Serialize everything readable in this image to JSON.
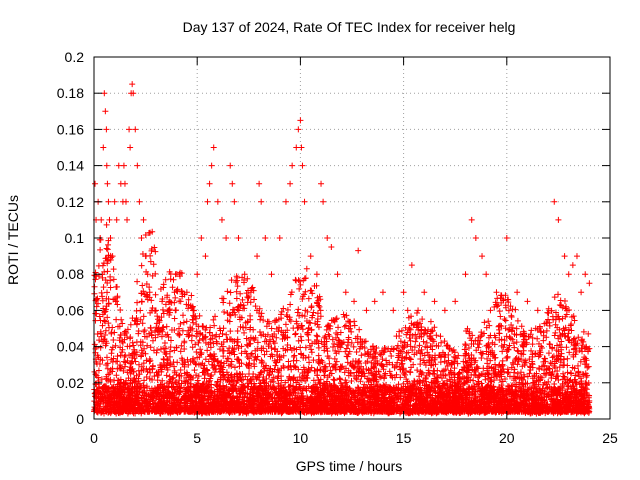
{
  "chart_data": {
    "type": "scatter",
    "title": "Day 137 of 2024, Rate Of TEC Index for receiver helg",
    "xlabel": "GPS time / hours",
    "ylabel": "ROTI / TECUs",
    "xlim": [
      0,
      25
    ],
    "ylim": [
      0,
      0.2
    ],
    "x_ticks": [
      0,
      5,
      10,
      15,
      20,
      25
    ],
    "x_tick_labels": [
      "0",
      "5",
      "10",
      "15",
      "20",
      "25"
    ],
    "y_ticks": [
      0,
      0.02,
      0.04,
      0.06,
      0.08,
      0.1,
      0.12,
      0.14,
      0.16,
      0.18,
      0.2
    ],
    "y_tick_labels": [
      "0",
      "0.02",
      "0.04",
      "0.06",
      "0.08",
      "0.1",
      "0.12",
      "0.14",
      "0.16",
      "0.18",
      "0.2"
    ],
    "grid": true,
    "marker": "+",
    "marker_color": "#ff0000",
    "series": [
      {
        "name": "ROTI",
        "x": [
          0.05,
          0.1,
          0.2,
          0.3,
          0.35,
          0.45,
          0.5,
          0.55,
          0.6,
          0.62,
          0.65,
          0.7,
          0.75,
          0.8,
          0.9,
          1.0,
          1.1,
          1.2,
          1.3,
          1.4,
          1.45,
          1.5,
          1.55,
          1.6,
          1.7,
          1.75,
          1.8,
          1.85,
          1.9,
          2.0,
          2.1,
          2.2,
          2.3,
          2.4,
          2.5,
          2.6,
          2.7,
          2.8,
          3.0,
          3.3,
          3.6,
          3.9,
          4.2,
          4.5,
          4.8,
          5.0,
          5.2,
          5.4,
          5.5,
          5.6,
          5.7,
          5.8,
          6.0,
          6.2,
          6.4,
          6.6,
          6.7,
          6.8,
          7.0,
          7.3,
          7.6,
          7.9,
          8.0,
          8.1,
          8.3,
          8.6,
          9.0,
          9.3,
          9.5,
          9.6,
          9.8,
          9.9,
          10.0,
          10.05,
          10.1,
          10.2,
          10.5,
          10.8,
          11.0,
          11.1,
          11.3,
          11.5,
          11.8,
          12.2,
          12.6,
          12.8,
          13.2,
          13.6,
          14.0,
          14.5,
          15.0,
          15.2,
          15.4,
          15.7,
          16.0,
          16.5,
          17.0,
          17.5,
          18.0,
          18.3,
          18.5,
          18.8,
          19.0,
          19.5,
          20.0,
          20.5,
          21.0,
          21.5,
          22.0,
          22.3,
          22.5,
          22.8,
          23.0,
          23.2,
          23.4,
          23.6,
          23.8,
          24.0
        ],
        "y": [
          0.13,
          0.11,
          0.12,
          0.1,
          0.11,
          0.15,
          0.18,
          0.17,
          0.16,
          0.14,
          0.13,
          0.12,
          0.11,
          0.1,
          0.09,
          0.12,
          0.11,
          0.14,
          0.13,
          0.12,
          0.14,
          0.13,
          0.12,
          0.11,
          0.16,
          0.15,
          0.18,
          0.185,
          0.18,
          0.16,
          0.14,
          0.12,
          0.1,
          0.11,
          0.09,
          0.08,
          0.07,
          0.06,
          0.06,
          0.065,
          0.06,
          0.07,
          0.065,
          0.07,
          0.06,
          0.08,
          0.1,
          0.09,
          0.12,
          0.13,
          0.14,
          0.15,
          0.12,
          0.11,
          0.1,
          0.14,
          0.13,
          0.12,
          0.1,
          0.08,
          0.07,
          0.09,
          0.13,
          0.12,
          0.1,
          0.08,
          0.1,
          0.12,
          0.13,
          0.14,
          0.15,
          0.16,
          0.165,
          0.15,
          0.14,
          0.12,
          0.09,
          0.08,
          0.13,
          0.12,
          0.1,
          0.095,
          0.08,
          0.07,
          0.065,
          0.093,
          0.06,
          0.065,
          0.07,
          0.06,
          0.07,
          0.06,
          0.085,
          0.06,
          0.07,
          0.065,
          0.06,
          0.065,
          0.08,
          0.11,
          0.1,
          0.09,
          0.08,
          0.07,
          0.1,
          0.07,
          0.065,
          0.06,
          0.055,
          0.12,
          0.11,
          0.09,
          0.08,
          0.085,
          0.09,
          0.07,
          0.08,
          0.075
        ]
      }
    ]
  }
}
